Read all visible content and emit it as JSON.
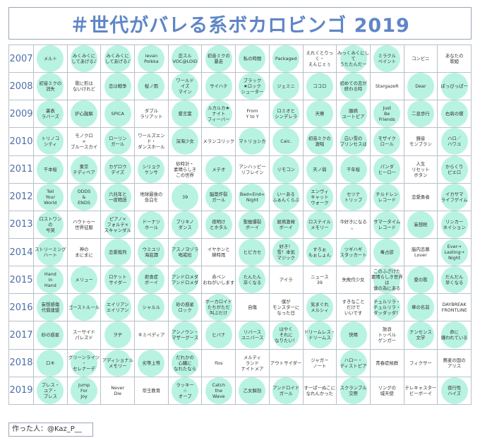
{
  "title": "＃世代がバレる系ボカロビンゴ 2019",
  "footer": "作った人：@Kaz_P__",
  "colors": {
    "stamp": "#b8f3e2",
    "title": "#5f86c6",
    "year": "#4f6fa8",
    "grid": "#b8c0cc"
  },
  "rows": [
    {
      "year": "2007",
      "cells": [
        {
          "text": "メルト",
          "marked": true
        },
        {
          "text": "みくみくに\nしてあげる♪",
          "marked": true
        },
        {
          "text": "みくみくに\nしてあげる♪",
          "marked": true
        },
        {
          "text": "levan\nPolkka",
          "marked": true
        },
        {
          "text": "恋スル\nVOC@LOID",
          "marked": true
        },
        {
          "text": "初音ミクの\n暴走",
          "marked": true
        },
        {
          "text": "私の時間",
          "marked": true
        },
        {
          "text": "Packaged",
          "marked": true
        },
        {
          "text": "えれくとりっく・\nえんじぇぅ",
          "marked": false
        },
        {
          "text": "みっくみくにして\nうたたんだー",
          "marked": true
        },
        {
          "text": "ミラクル\nペイント",
          "marked": true
        },
        {
          "text": "コンビニ",
          "marked": false
        },
        {
          "text": "あなたの\n歌姫",
          "marked": false
        }
      ]
    },
    {
      "year": "2008",
      "cells": [
        {
          "text": "初音ミクの\n消失",
          "marked": true
        },
        {
          "text": "歌に形は\nないけれど",
          "marked": false
        },
        {
          "text": "恋は戦争",
          "marked": true
        },
        {
          "text": "桜ノ雨",
          "marked": true
        },
        {
          "text": "ワールド\nイズ\nマイン",
          "marked": true
        },
        {
          "text": "サイハテ",
          "marked": true
        },
        {
          "text": "ブラック\n★ロック\nシューター",
          "marked": true
        },
        {
          "text": "ジェミニ",
          "marked": true
        },
        {
          "text": "ココロ",
          "marked": true
        },
        {
          "text": "初めての恋が\n終わる時",
          "marked": true
        },
        {
          "text": "StargazeR",
          "marked": false
        },
        {
          "text": "Dear",
          "marked": true
        },
        {
          "text": "ぽっぴっぱー",
          "marked": true
        }
      ]
    },
    {
      "year": "2009",
      "cells": [
        {
          "text": "裏表\nラバーズ",
          "marked": true
        },
        {
          "text": "炉心融解",
          "marked": true
        },
        {
          "text": "SPiCA",
          "marked": true
        },
        {
          "text": "ダブル\nラリアット",
          "marked": false
        },
        {
          "text": "愛言葉",
          "marked": true
        },
        {
          "text": "ルカルカ★\nナイト\nフィーバー",
          "marked": true
        },
        {
          "text": "From\nY to Y",
          "marked": false
        },
        {
          "text": "ロミオと\nシンデレラ",
          "marked": true
        },
        {
          "text": "天樂",
          "marked": true
        },
        {
          "text": "臆病\nユートピア",
          "marked": true
        },
        {
          "text": "Just\nBe\nFriends",
          "marked": true
        },
        {
          "text": "二息歩行",
          "marked": true
        },
        {
          "text": "右肩の蝶",
          "marked": true
        }
      ]
    },
    {
      "year": "2010",
      "cells": [
        {
          "text": "トリノコ\nシティ",
          "marked": true
        },
        {
          "text": "モノクロ\n∞\nブルースカイ",
          "marked": false
        },
        {
          "text": "ローリン\nガール",
          "marked": true
        },
        {
          "text": "ワールズエンド・\nダンスホール",
          "marked": false
        },
        {
          "text": "深海少女",
          "marked": true
        },
        {
          "text": "メランコリック",
          "marked": false
        },
        {
          "text": "マトリョシカ",
          "marked": true
        },
        {
          "text": "Calc.",
          "marked": true
        },
        {
          "text": "初音ミクの\n激唱",
          "marked": true
        },
        {
          "text": "白い雪の\nプリンセスは",
          "marked": true
        },
        {
          "text": "モザイク\nロール",
          "marked": true
        },
        {
          "text": "鏡音\nモンブラン",
          "marked": false
        },
        {
          "text": "ハロ／\nハワユ",
          "marked": true
        }
      ]
    },
    {
      "year": "2011",
      "cells": [
        {
          "text": "千本桜",
          "marked": true
        },
        {
          "text": "東京\nテディベア",
          "marked": true
        },
        {
          "text": "カゲロウ\nデイズ",
          "marked": true
        },
        {
          "text": "シリョク\nケンサ",
          "marked": true
        },
        {
          "text": "砂時計・\n素晴らしき\nこの世界",
          "marked": false
        },
        {
          "text": "メテオ",
          "marked": true
        },
        {
          "text": "アンハッピー\nリフレイン",
          "marked": false
        },
        {
          "text": "リモコン",
          "marked": true
        },
        {
          "text": "天ノ弱",
          "marked": true
        },
        {
          "text": "千年桜",
          "marked": true
        },
        {
          "text": "パンダ\nヒーロー",
          "marked": true
        },
        {
          "text": "人生\nリセット\nボタン",
          "marked": false
        },
        {
          "text": "からくり\nピエロ",
          "marked": true
        }
      ]
    },
    {
      "year": "2012",
      "cells": [
        {
          "text": "Tell\nYour\nWorld",
          "marked": true
        },
        {
          "text": "ODDS\n&\nENDS",
          "marked": true
        },
        {
          "text": "六兆年と\n一夜物語",
          "marked": true
        },
        {
          "text": "地球最後の\n告白を",
          "marked": false
        },
        {
          "text": "39",
          "marked": true
        },
        {
          "text": "脳漿炸裂\nガール",
          "marked": true
        },
        {
          "text": "Bad∞End∞\nNight",
          "marked": true
        },
        {
          "text": "いーある\nふぁんくらぶ",
          "marked": true
        },
        {
          "text": "エンヴィ\nキャット\nウォーク",
          "marked": true
        },
        {
          "text": "セツナ\nトリップ",
          "marked": true
        },
        {
          "text": "チルドレン\nレコード",
          "marked": true
        },
        {
          "text": "恋愛勇者",
          "marked": false
        },
        {
          "text": "イカサマ\nライフゲイム",
          "marked": true
        }
      ]
    },
    {
      "year": "2013",
      "cells": [
        {
          "text": "ロストワン\nの\n号哭",
          "marked": true
        },
        {
          "text": "ハウトゥー\n世界征服",
          "marked": false
        },
        {
          "text": "ピアノ×\nフォルテ×\nスキャンダル",
          "marked": true
        },
        {
          "text": "ドーナツ\nホール",
          "marked": true
        },
        {
          "text": "ブリキノ\nダンス",
          "marked": true
        },
        {
          "text": "夜明け\nとホタル",
          "marked": true
        },
        {
          "text": "聖槍爆裂\nボーイ",
          "marked": true
        },
        {
          "text": "厨病激発\nボーイ",
          "marked": true
        },
        {
          "text": "ロステイル\nメモリー",
          "marked": true
        },
        {
          "text": "今好きになる\n。",
          "marked": false
        },
        {
          "text": "サマータイム\nレコード",
          "marked": true
        },
        {
          "text": "妄想税",
          "marked": true
        },
        {
          "text": "リンカー\nネイション",
          "marked": true
        }
      ]
    },
    {
      "year": "2014",
      "cells": [
        {
          "text": "ストリーミング\nハート",
          "marked": true
        },
        {
          "text": "神の\nまにまに",
          "marked": false
        },
        {
          "text": "恋愛裁判",
          "marked": true
        },
        {
          "text": "ウミユリ\n海底譚",
          "marked": true
        },
        {
          "text": "アスノヨゾラ\n哨戒班",
          "marked": true
        },
        {
          "text": "イヤホンと\n蝉時雨",
          "marked": false
        },
        {
          "text": "ヒビカセ",
          "marked": true
        },
        {
          "text": "好き！\n雪！本気\nマジック",
          "marked": true
        },
        {
          "text": "すろぉ\nもぉしょん",
          "marked": true
        },
        {
          "text": "ツギハギ\nスタッカート",
          "marked": true
        },
        {
          "text": "毒占欲",
          "marked": true
        },
        {
          "text": "脳内恋慕\nLover",
          "marked": false
        },
        {
          "text": "Ever→\nLasting→\nNight",
          "marked": true
        }
      ]
    },
    {
      "year": "2015",
      "cells": [
        {
          "text": "Hand\nin\nHand",
          "marked": true
        },
        {
          "text": "メリュー",
          "marked": true
        },
        {
          "text": "ロケット\nサイダー",
          "marked": true
        },
        {
          "text": "拒食症\nボーイ",
          "marked": true
        },
        {
          "text": "アンドロメダ\nアンドロメダ",
          "marked": true
        },
        {
          "text": "赤ペン\nおねがいします",
          "marked": false
        },
        {
          "text": "たんたん\n卒くなる",
          "marked": true
        },
        {
          "text": "アイラ",
          "marked": false
        },
        {
          "text": "ニュース\n39",
          "marked": false
        },
        {
          "text": "失敗作少女",
          "marked": false
        },
        {
          "text": "このふざけた\n素晴らしき世界は\n僕の為にある",
          "marked": true
        },
        {
          "text": "愛の歌",
          "marked": true
        },
        {
          "text": "だんだん\n早くなる",
          "marked": true
        }
      ]
    },
    {
      "year": "2016",
      "cells": [
        {
          "text": "妄想感傷\n代償連盟",
          "marked": true
        },
        {
          "text": "ゴーストルール",
          "marked": true
        },
        {
          "text": "エイリアン\nエイリアン",
          "marked": true
        },
        {
          "text": "シャルル",
          "marked": true
        },
        {
          "text": "砂の惑星\nロック",
          "marked": true
        },
        {
          "text": "ボーカロイド\nたちがただ\n叫ぶだけ",
          "marked": true
        },
        {
          "text": "自傷",
          "marked": false
        },
        {
          "text": "僕が\nモンスターに\nなった日",
          "marked": false
        },
        {
          "text": "気まぐれ\nメルシィ",
          "marked": true
        },
        {
          "text": "すきなこと\nだけで\nいいです",
          "marked": false
        },
        {
          "text": "チュルリラ・\nチュルリラ・\nダッダッダ！",
          "marked": true
        },
        {
          "text": "華の名前",
          "marked": true
        },
        {
          "text": "DAYBREAK\nFRONTLINE",
          "marked": false
        }
      ]
    },
    {
      "year": "2017",
      "cells": [
        {
          "text": "砂の惑星",
          "marked": true
        },
        {
          "text": "スーサイド\nパレヱド",
          "marked": false
        },
        {
          "text": "ヲヂ",
          "marked": true
        },
        {
          "text": "キミペディア",
          "marked": false
        },
        {
          "text": "アンノウン・\nマザーグース",
          "marked": true
        },
        {
          "text": "ヒバナ",
          "marked": true
        },
        {
          "text": "リバース\nユニバース",
          "marked": true
        },
        {
          "text": "はやく\nそれに\nなりたい！",
          "marked": true
        },
        {
          "text": "ドリームレス・\nドリームス",
          "marked": true
        },
        {
          "text": "快晴",
          "marked": true
        },
        {
          "text": "放浪\nトッペル\nゲンガー",
          "marked": false
        },
        {
          "text": "ナンセンス\n文学",
          "marked": true
        },
        {
          "text": "命に\n嫌われている",
          "marked": true
        }
      ]
    },
    {
      "year": "2018",
      "cells": [
        {
          "text": "ロキ",
          "marked": true
        },
        {
          "text": "グリーンライツ\n・\nセレナーデ",
          "marked": true
        },
        {
          "text": "アディショナル\nメモリー",
          "marked": true
        },
        {
          "text": "劣等上等",
          "marked": true
        },
        {
          "text": "だれかの\n心臓に\nなれたなら",
          "marked": true
        },
        {
          "text": "flos",
          "marked": false
        },
        {
          "text": "メルティ\nランド\nナイトメア",
          "marked": false
        },
        {
          "text": "アウトサイダー",
          "marked": false
        },
        {
          "text": "ジャガー\nノート",
          "marked": false
        },
        {
          "text": "ハロー・\nディストピア",
          "marked": true
        },
        {
          "text": "青春症候群",
          "marked": false
        },
        {
          "text": "フィクサー",
          "marked": false
        },
        {
          "text": "蕎麦の国の\nアリス",
          "marked": false
        }
      ]
    },
    {
      "year": "2019",
      "cells": [
        {
          "text": "ブレス・\nユア・\nブレス",
          "marked": true
        },
        {
          "text": "Jump\nFor\nJoy",
          "marked": true
        },
        {
          "text": "Never\nDie",
          "marked": false
        },
        {
          "text": "帝王教育",
          "marked": false
        },
        {
          "text": "ラッキー\n☆\nオーブ",
          "marked": true
        },
        {
          "text": "Catch\nthe\nWave",
          "marked": true
        },
        {
          "text": "乙女解剖",
          "marked": true
        },
        {
          "text": "アンドロイド\nガール",
          "marked": true
        },
        {
          "text": "すーぱーぬこに\nなれんかった",
          "marked": false
        },
        {
          "text": "スクランブル\n交際",
          "marked": true
        },
        {
          "text": "リングの\n城天使",
          "marked": false
        },
        {
          "text": "テレキャスター\nビーボーイ",
          "marked": false
        },
        {
          "text": "夜行性\nハイズ",
          "marked": true
        }
      ]
    }
  ]
}
